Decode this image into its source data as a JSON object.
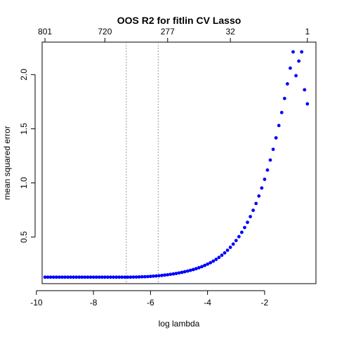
{
  "chart_data": {
    "type": "scatter",
    "title": "OOS R2 for fitlin CV Lasso",
    "xlabel": "log lambda",
    "ylabel": "mean squared error",
    "xlim": [
      -9.8,
      -0.2
    ],
    "ylim": [
      0.07,
      2.3
    ],
    "x_ticks": [
      -10,
      -8,
      -6,
      -4,
      -2
    ],
    "x_tick_labels": [
      "-10",
      "-8",
      "-6",
      "-4",
      "-2"
    ],
    "y_ticks": [
      0.5,
      1.0,
      1.5,
      2.0
    ],
    "y_tick_labels": [
      "0.5",
      "1.0",
      "1.5",
      "2.0"
    ],
    "top_axis_ticks": [
      -9.7,
      -7.6,
      -5.4,
      -3.2,
      -0.5
    ],
    "top_axis_labels": [
      "801",
      "720",
      "277",
      "32",
      "1"
    ],
    "vlines": [
      -6.85,
      -5.73
    ],
    "grid": false,
    "point_color": "#0000ff",
    "series": [
      {
        "x": [
          -9.7,
          -9.6,
          -9.5,
          -9.4,
          -9.3,
          -9.2,
          -9.1,
          -9.0,
          -8.9,
          -8.8,
          -8.7,
          -8.6,
          -8.5,
          -8.4,
          -8.3,
          -8.2,
          -8.1,
          -8.0,
          -7.9,
          -7.8,
          -7.7,
          -7.6,
          -7.5,
          -7.4,
          -7.3,
          -7.2,
          -7.1,
          -7.0,
          -6.9,
          -6.8,
          -6.7,
          -6.6,
          -6.5,
          -6.4,
          -6.3,
          -6.2,
          -6.1,
          -6.0,
          -5.9,
          -5.8,
          -5.7,
          -5.6,
          -5.5,
          -5.4,
          -5.3,
          -5.2,
          -5.1,
          -5.0,
          -4.9,
          -4.8,
          -4.7,
          -4.6,
          -4.5,
          -4.4,
          -4.3,
          -4.2,
          -4.1,
          -4.0,
          -3.9,
          -3.8,
          -3.7,
          -3.6,
          -3.5,
          -3.4,
          -3.3,
          -3.2,
          -3.1,
          -3.0,
          -2.9,
          -2.8,
          -2.7,
          -2.6,
          -2.5,
          -2.4,
          -2.3,
          -2.2,
          -2.1,
          -2.0,
          -1.9,
          -1.8,
          -1.7,
          -1.6,
          -1.5,
          -1.4,
          -1.3,
          -1.2,
          -1.1,
          -1.0,
          -0.9,
          -0.8,
          -0.7,
          -0.6,
          -0.5
        ],
        "y": [
          0.13,
          0.13,
          0.13,
          0.13,
          0.13,
          0.13,
          0.13,
          0.13,
          0.13,
          0.13,
          0.13,
          0.13,
          0.13,
          0.13,
          0.13,
          0.13,
          0.13,
          0.13,
          0.13,
          0.13,
          0.13,
          0.13,
          0.13,
          0.13,
          0.13,
          0.13,
          0.13,
          0.13,
          0.13,
          0.13,
          0.13,
          0.131,
          0.131,
          0.132,
          0.133,
          0.134,
          0.135,
          0.137,
          0.139,
          0.141,
          0.143,
          0.146,
          0.149,
          0.152,
          0.156,
          0.16,
          0.164,
          0.169,
          0.174,
          0.18,
          0.186,
          0.193,
          0.2,
          0.208,
          0.217,
          0.227,
          0.238,
          0.25,
          0.263,
          0.278,
          0.294,
          0.312,
          0.332,
          0.354,
          0.378,
          0.405,
          0.435,
          0.468,
          0.504,
          0.544,
          0.588,
          0.636,
          0.689,
          0.747,
          0.81,
          0.879,
          0.953,
          1.033,
          1.119,
          1.211,
          1.31,
          1.416,
          1.53,
          1.65,
          1.78,
          1.915,
          2.06,
          2.21,
          1.99,
          2.125,
          2.21,
          1.86,
          1.73
        ]
      }
    ]
  }
}
